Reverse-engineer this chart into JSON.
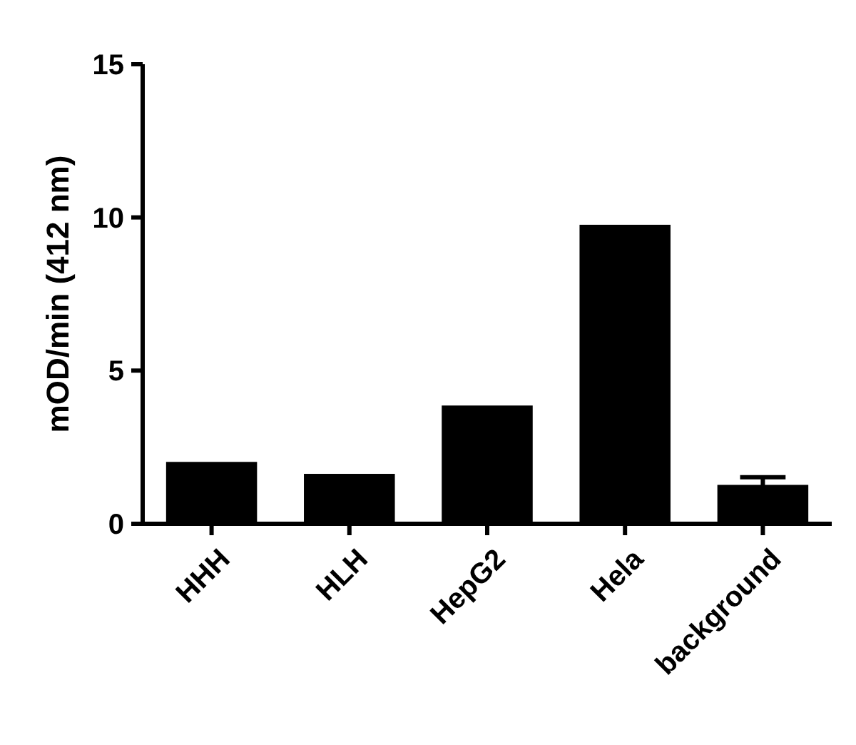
{
  "chart_data": {
    "type": "bar",
    "ylabel": "mOD/min (412 nm)",
    "categories": [
      "HHH",
      "HLH",
      "HepG2",
      "Hela",
      "background"
    ],
    "values": [
      2.02,
      1.63,
      3.86,
      9.76,
      1.27
    ],
    "errors": [
      null,
      null,
      null,
      null,
      0.25
    ],
    "color": "#000000",
    "ylim": [
      0,
      15
    ],
    "yticks": [
      0,
      5,
      10,
      15
    ],
    "grid": false
  }
}
